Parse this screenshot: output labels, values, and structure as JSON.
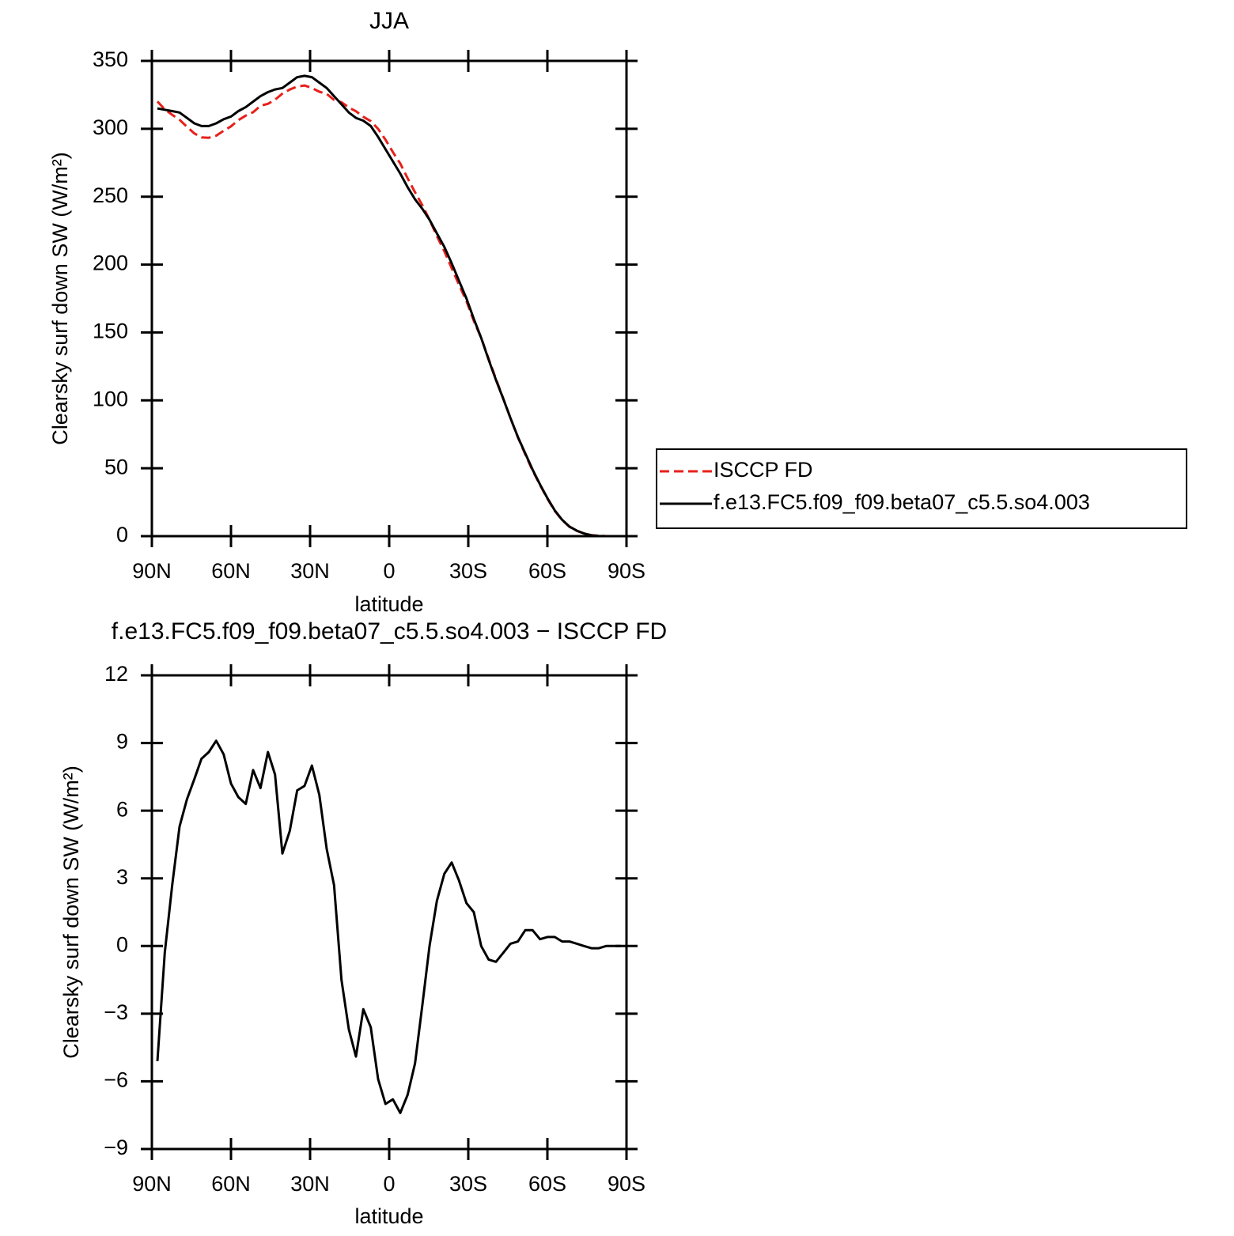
{
  "chart_data": [
    {
      "type": "line",
      "title": "JJA",
      "xlabel": "latitude",
      "ylabel": "Clearsky surf down SW (W/m²)",
      "x": [
        87.9,
        85.1,
        82.3,
        79.5,
        76.7,
        73.9,
        71.2,
        68.4,
        65.6,
        62.8,
        60.0,
        57.2,
        54.4,
        51.6,
        48.8,
        46.0,
        43.3,
        40.5,
        37.7,
        34.9,
        32.1,
        29.3,
        26.5,
        23.7,
        20.9,
        18.1,
        15.3,
        12.6,
        9.8,
        7.0,
        4.2,
        1.4,
        -1.4,
        -4.2,
        -7.0,
        -9.8,
        -12.6,
        -15.3,
        -18.1,
        -20.9,
        -23.7,
        -26.5,
        -29.3,
        -32.1,
        -34.9,
        -37.7,
        -40.5,
        -43.3,
        -46.0,
        -48.8,
        -51.6,
        -54.4,
        -57.2,
        -60.0,
        -62.8,
        -65.6,
        -68.4,
        -71.2,
        -73.9,
        -76.7,
        -79.5,
        -82.3,
        -85.1,
        -87.9
      ],
      "series": [
        {
          "name": "ISCCP FD",
          "color": "#e8201a",
          "dash": true,
          "values": [
            320.1,
            314.3,
            310.3,
            306.7,
            301.5,
            296.6,
            293.7,
            293.4,
            294.9,
            298.5,
            301.8,
            306.4,
            309.7,
            312.2,
            317,
            318.4,
            321.4,
            325.9,
            328.9,
            331.1,
            331.9,
            330,
            327.3,
            325.7,
            321.3,
            319.5,
            315.7,
            312.9,
            308.8,
            305.6,
            299.9,
            292,
            282.8,
            274.4,
            263.6,
            253.2,
            243.6,
            233,
            221,
            209.8,
            197.3,
            185.1,
            173.1,
            158.5,
            146,
            130.6,
            115.7,
            101.3,
            86.9,
            72.8,
            60.3,
            48.3,
            37.7,
            27.6,
            18.6,
            11.8,
            6.8,
            3.9,
            2,
            0.7,
            0.3,
            0,
            0,
            0
          ]
        },
        {
          "name": "f.e13.FC5.f09_f09.beta07_c5.5.so4.003",
          "color": "#000000",
          "dash": false,
          "values": [
            315,
            314,
            313,
            312,
            308,
            304,
            302,
            302,
            304,
            307,
            309,
            313,
            316,
            320,
            324,
            327,
            329,
            330,
            334,
            338,
            339,
            338,
            334,
            330,
            324,
            318,
            312,
            308,
            306,
            302,
            294,
            285,
            276,
            267,
            257,
            248,
            241,
            233,
            223,
            213,
            201,
            188,
            175,
            160,
            146,
            130,
            115,
            101,
            87,
            73,
            61,
            49,
            38,
            28,
            19,
            12,
            7,
            4,
            2,
            0.6,
            0.2,
            0,
            0,
            0
          ]
        }
      ],
      "xlim": [
        90,
        -90
      ],
      "xticks": [
        {
          "value": 90,
          "label": "90N"
        },
        {
          "value": 60,
          "label": "60N"
        },
        {
          "value": 30,
          "label": "30N"
        },
        0,
        {
          "value": -30,
          "label": "30S"
        },
        {
          "value": -60,
          "label": "60S"
        },
        {
          "value": -90,
          "label": "90S"
        }
      ],
      "ylim": [
        0,
        350
      ],
      "yticks": [
        0,
        50,
        100,
        150,
        200,
        250,
        300,
        350
      ],
      "legend": "right"
    },
    {
      "type": "line",
      "title": "f.e13.FC5.f09_f09.beta07_c5.5.so4.003 − ISCCP FD",
      "xlabel": "latitude",
      "ylabel": "Clearsky surf down SW (W/m²)",
      "x": [
        87.9,
        85.1,
        82.3,
        79.5,
        76.7,
        73.9,
        71.2,
        68.4,
        65.6,
        62.8,
        60.0,
        57.2,
        54.4,
        51.6,
        48.8,
        46.0,
        43.3,
        40.5,
        37.7,
        34.9,
        32.1,
        29.3,
        26.5,
        23.7,
        20.9,
        18.1,
        15.3,
        12.6,
        9.8,
        7.0,
        4.2,
        1.4,
        -1.4,
        -4.2,
        -7.0,
        -9.8,
        -12.6,
        -15.3,
        -18.1,
        -20.9,
        -23.7,
        -26.5,
        -29.3,
        -32.1,
        -34.9,
        -37.7,
        -40.5,
        -43.3,
        -46.0,
        -48.8,
        -51.6,
        -54.4,
        -57.2,
        -60.0,
        -62.8,
        -65.6,
        -68.4,
        -71.2,
        -73.9,
        -76.7,
        -79.5,
        -82.3,
        -85.1,
        -87.9
      ],
      "series": [
        {
          "color": "#000000",
          "dash": false,
          "values": [
            -5.1,
            -0.3,
            2.7,
            5.3,
            6.5,
            7.4,
            8.3,
            8.6,
            9.1,
            8.5,
            7.2,
            6.6,
            6.3,
            7.8,
            7.0,
            8.6,
            7.6,
            4.1,
            5.1,
            6.9,
            7.1,
            8.0,
            6.7,
            4.3,
            2.7,
            -1.5,
            -3.7,
            -4.9,
            -2.8,
            -3.6,
            -5.9,
            -7.0,
            -6.8,
            -7.4,
            -6.6,
            -5.2,
            -2.6,
            0.0,
            2.0,
            3.2,
            3.7,
            2.9,
            1.9,
            1.5,
            0.0,
            -0.6,
            -0.7,
            -0.3,
            0.1,
            0.2,
            0.7,
            0.7,
            0.3,
            0.4,
            0.4,
            0.2,
            0.2,
            0.1,
            0.0,
            -0.1,
            -0.1,
            0.0,
            0.0,
            0.0
          ]
        }
      ],
      "xlim": [
        90,
        -90
      ],
      "xticks": [
        {
          "value": 90,
          "label": "90N"
        },
        {
          "value": 60,
          "label": "60N"
        },
        {
          "value": 30,
          "label": "30N"
        },
        0,
        {
          "value": -30,
          "label": "30S"
        },
        {
          "value": -60,
          "label": "60S"
        },
        {
          "value": -90,
          "label": "90S"
        }
      ],
      "ylim": [
        -9,
        12
      ],
      "yticks": [
        {
          "value": -9,
          "label": "−9"
        },
        {
          "value": -6,
          "label": "−6"
        },
        {
          "value": -3,
          "label": "−3"
        },
        0,
        3,
        6,
        9,
        12
      ]
    }
  ]
}
